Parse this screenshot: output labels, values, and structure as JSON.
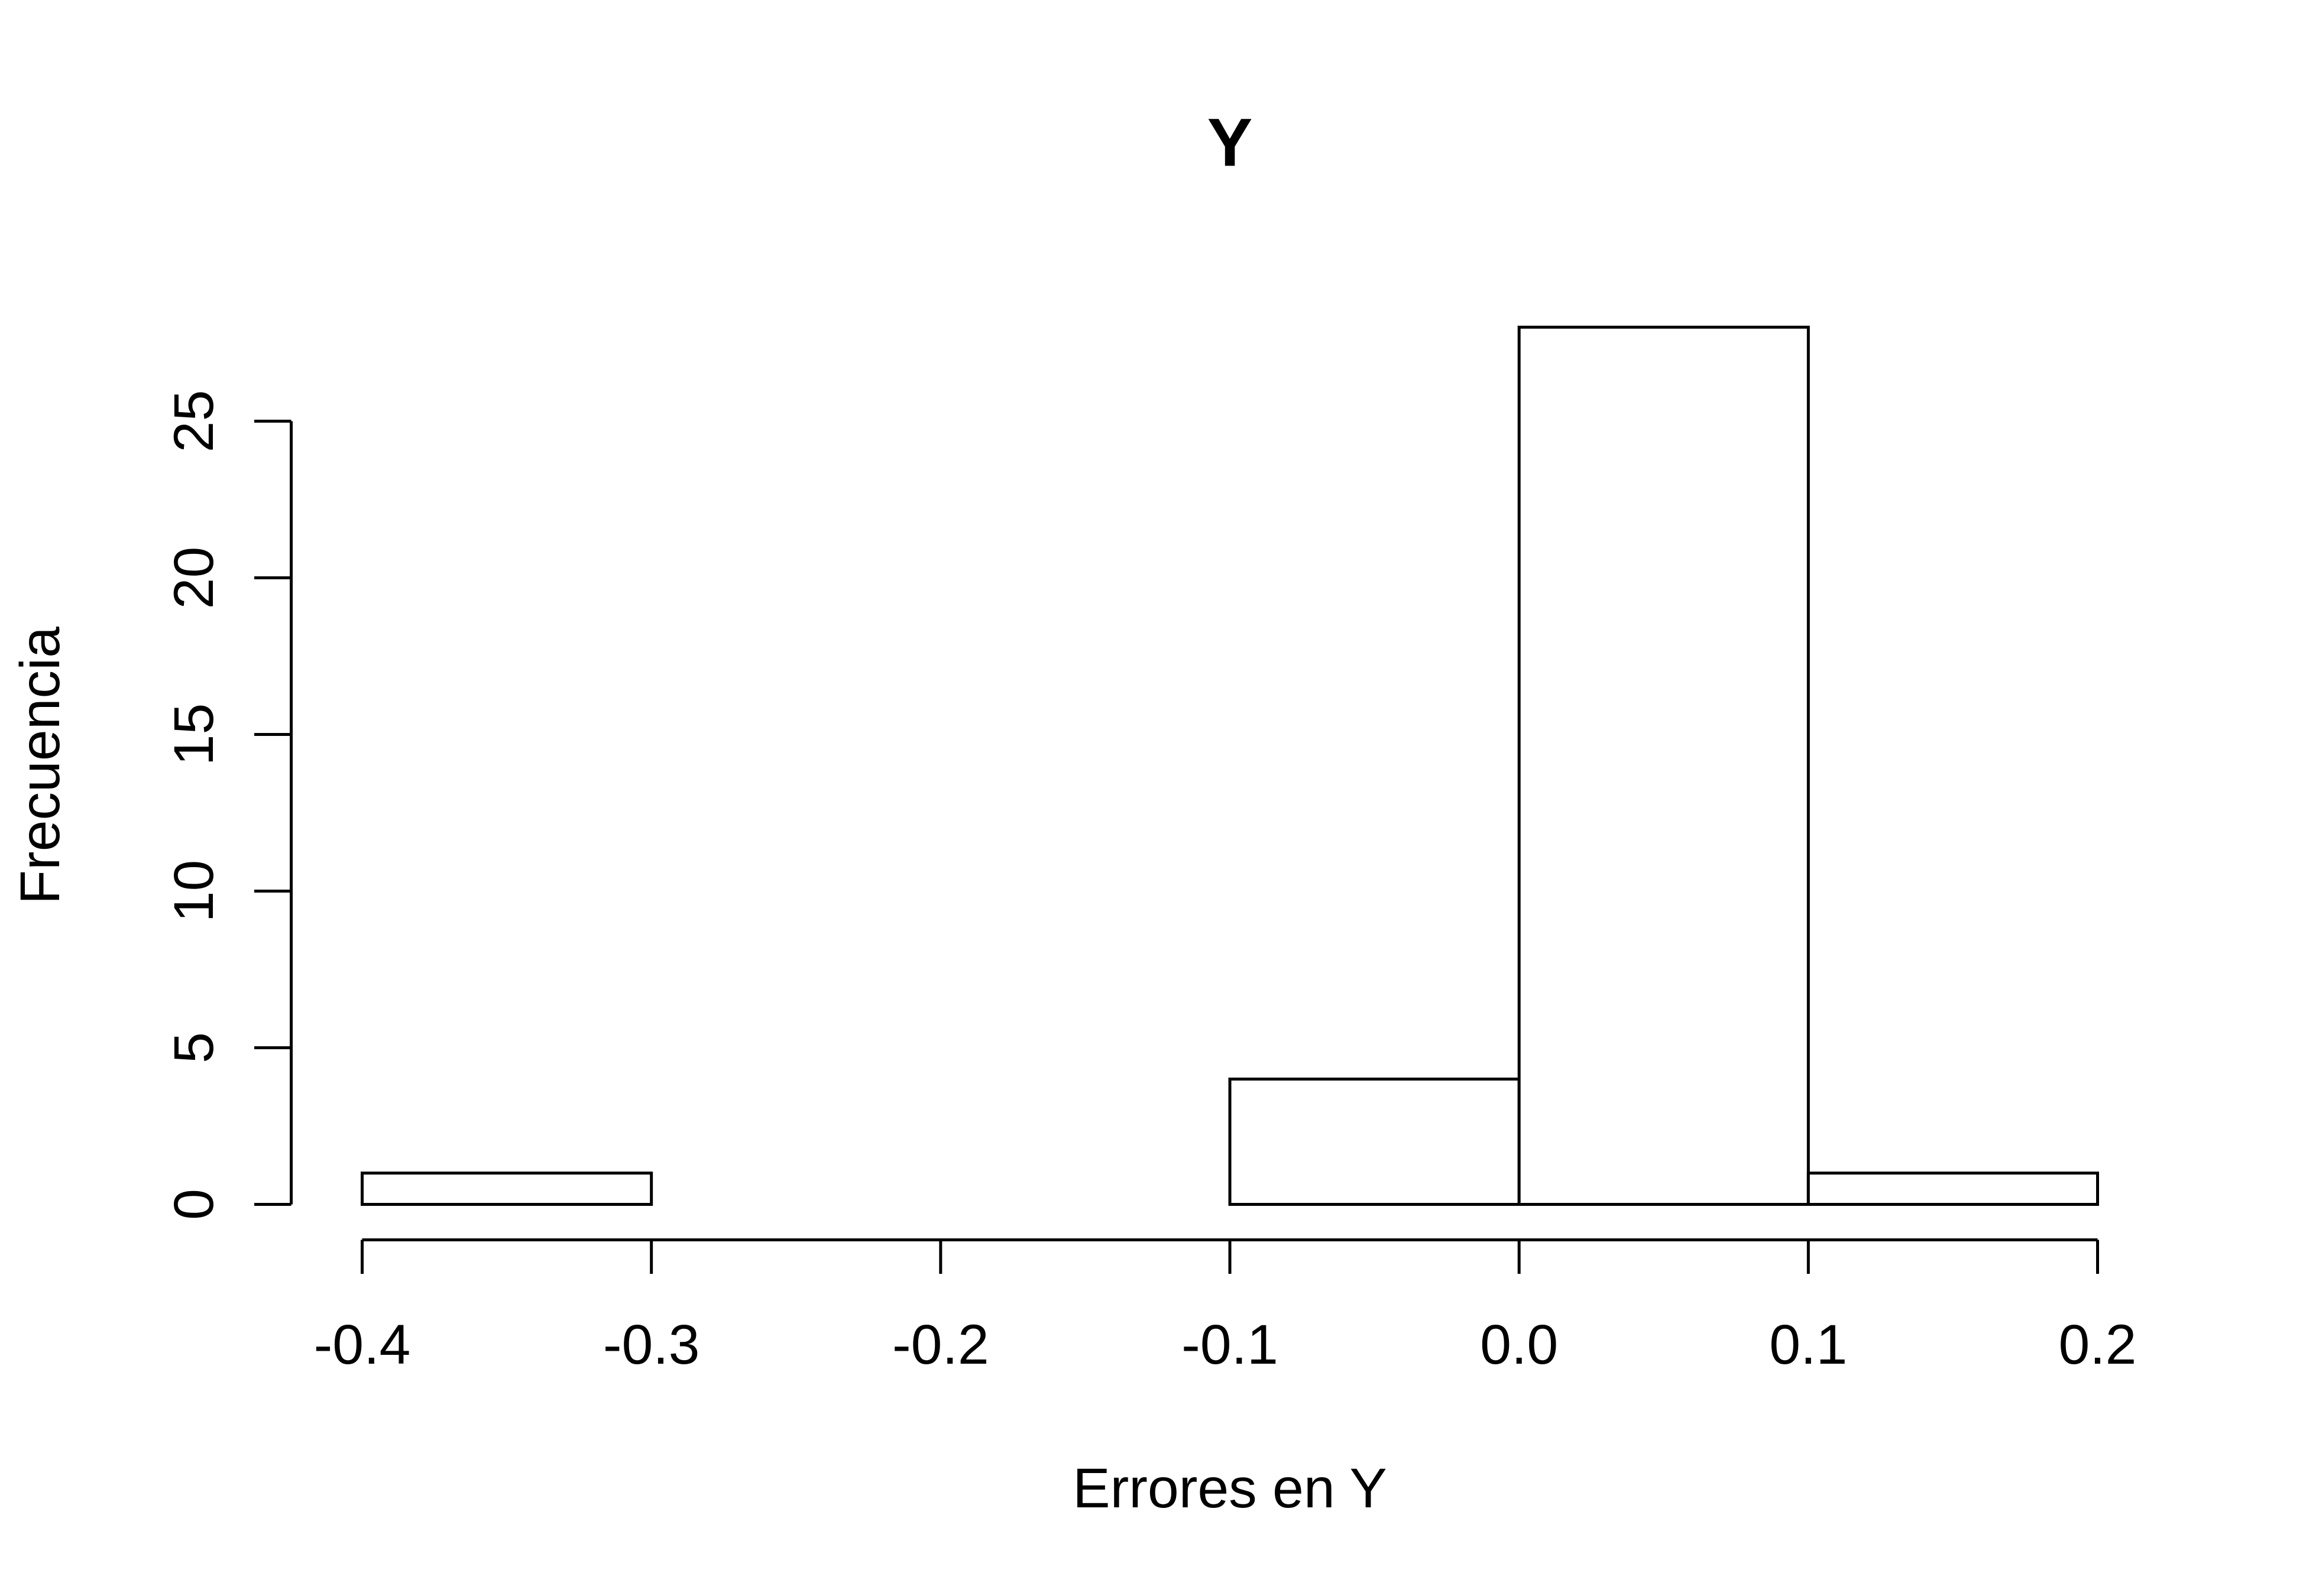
{
  "chart_data": {
    "type": "histogram",
    "title": "Y",
    "x_label": "Errores en Y",
    "y_label": "Frecuencia",
    "bins": [
      -0.4,
      -0.3,
      -0.2,
      -0.1,
      0,
      0.1,
      0.2
    ],
    "values": [
      1,
      0,
      0,
      4,
      28,
      1
    ],
    "color": "#ffffff",
    "edgecolor": "#000000",
    "xlim": [
      -0.4,
      0.2
    ],
    "xticks": [
      -0.4,
      -0.3,
      -0.2,
      -0.1,
      {
        "value": 0,
        "label": "0.0"
      },
      0.1,
      0.2
    ],
    "ylim": [
      0,
      28
    ],
    "yticks": [
      0,
      5,
      10,
      15,
      20,
      25
    ]
  }
}
